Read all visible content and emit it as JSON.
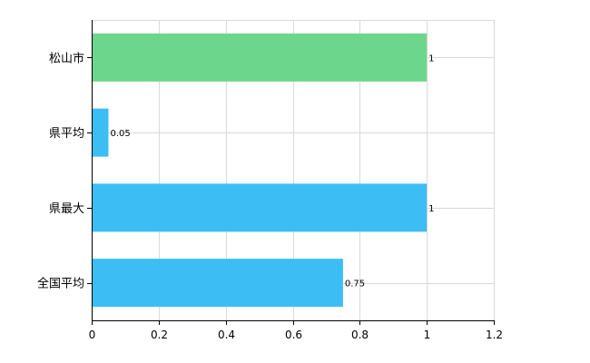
{
  "chart_data": {
    "type": "bar",
    "orientation": "horizontal",
    "categories": [
      "松山市",
      "県平均",
      "県最大",
      "全国平均"
    ],
    "values": [
      1,
      0.05,
      1,
      0.75
    ],
    "data_labels": [
      "1",
      "0.05",
      "1",
      "0.75"
    ],
    "bar_colors": [
      "#6dd68d",
      "#3cbef5",
      "#3cbef5",
      "#3cbef5"
    ],
    "xlim": [
      0,
      1.2
    ],
    "xticks": [
      0,
      0.2,
      0.4,
      0.6,
      0.8,
      1,
      1.2
    ],
    "xtick_labels": [
      "0",
      "0.2",
      "0.4",
      "0.6",
      "0.8",
      "1",
      "1.2"
    ],
    "grid": true,
    "legend": "none"
  }
}
